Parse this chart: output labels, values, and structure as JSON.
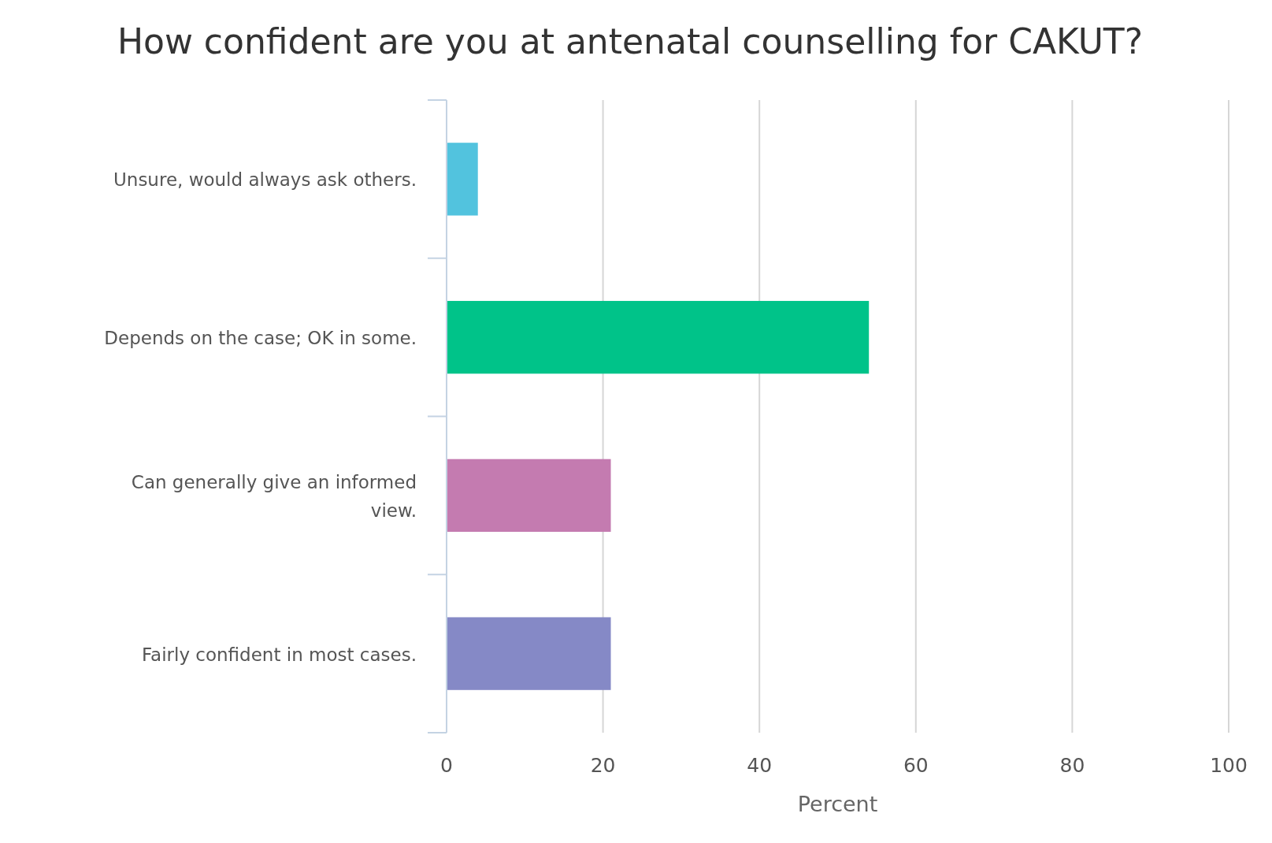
{
  "chart_data": {
    "type": "bar",
    "orientation": "horizontal",
    "title": "How confident are you at antenatal counselling for CAKUT?",
    "xlabel": "Percent",
    "categories": [
      "Unsure, would always ask others.",
      "Depends on the case; OK in some.",
      "Can generally give an informed view.",
      "Fairly confident in most cases."
    ],
    "values": [
      4,
      54,
      21,
      21
    ],
    "colors": [
      "#52c3de",
      "#00c389",
      "#c47bb0",
      "#8589c6"
    ],
    "xlim": [
      0,
      100
    ],
    "xticks": [
      0,
      20,
      40,
      60,
      80,
      100
    ],
    "grid": "x"
  }
}
